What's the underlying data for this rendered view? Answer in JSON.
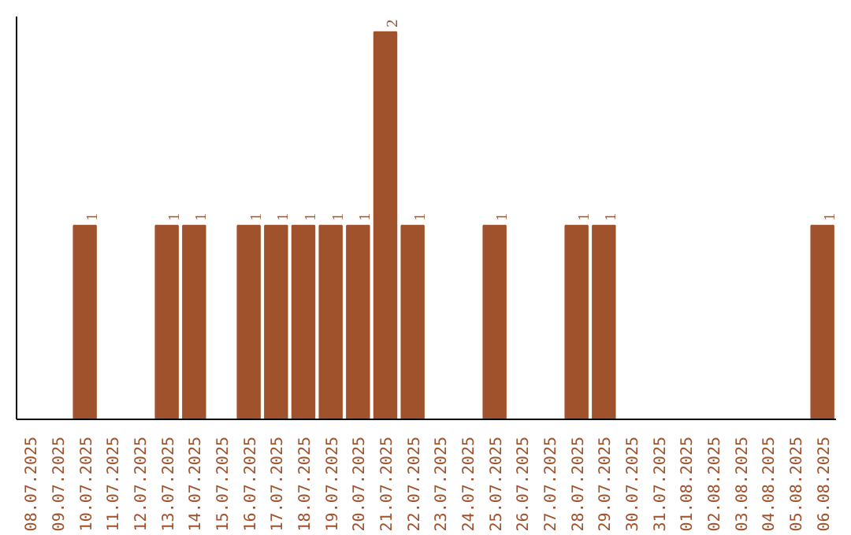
{
  "chart_data": {
    "type": "bar",
    "relative": false,
    "categories": [
      "08.07.2025",
      "09.07.2025",
      "10.07.2025",
      "11.07.2025",
      "12.07.2025",
      "13.07.2025",
      "14.07.2025",
      "15.07.2025",
      "16.07.2025",
      "17.07.2025",
      "18.07.2025",
      "19.07.2025",
      "20.07.2025",
      "21.07.2025",
      "22.07.2025",
      "23.07.2025",
      "24.07.2025",
      "25.07.2025",
      "26.07.2025",
      "27.07.2025",
      "28.07.2025",
      "29.07.2025",
      "30.07.2025",
      "31.07.2025",
      "01.08.2025",
      "02.08.2025",
      "03.08.2025",
      "04.08.2025",
      "05.08.2025",
      "06.08.2025"
    ],
    "values": [
      0,
      0,
      1,
      0,
      0,
      1,
      1,
      0,
      1,
      1,
      1,
      1,
      1,
      2,
      1,
      0,
      0,
      1,
      0,
      0,
      1,
      1,
      0,
      0,
      0,
      0,
      0,
      0,
      0,
      1
    ],
    "value_labels": [
      null,
      null,
      "1",
      null,
      null,
      "1",
      "1",
      null,
      "1",
      "1",
      "1",
      "1",
      "1",
      "2",
      "1",
      null,
      null,
      "1",
      null,
      null,
      "1",
      "1",
      null,
      null,
      null,
      null,
      null,
      null,
      null,
      "1"
    ],
    "color": "#a0522d",
    "ylim": [
      0,
      2
    ],
    "tick_labels": "x",
    "grid": false
  }
}
